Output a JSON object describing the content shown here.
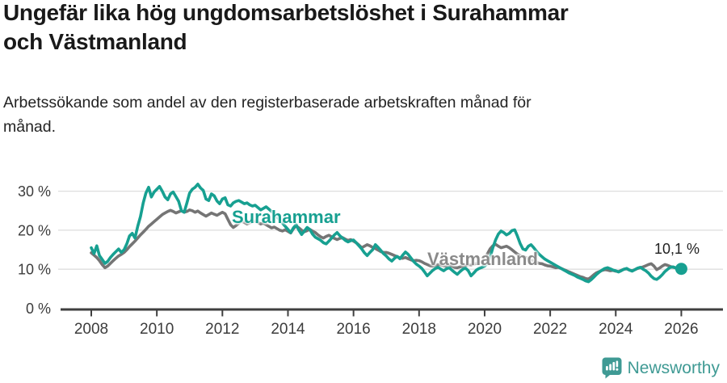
{
  "header": {
    "title": "Ungefär lika hög ungdomsarbetslöshet i Surahammar\noch Västmanland",
    "subtitle": "Arbetssökande som andel av den registerbaserade arbetskraften månad för\nmånad."
  },
  "footer": {
    "brand": "Newsworthy",
    "logo_icon": "speech-bubble-bar-chart-icon",
    "brand_color": "#3f9a94"
  },
  "chart_data": {
    "type": "line",
    "title": "Ungefär lika hög ungdomsarbetslöshet i Surahammar och Västmanland",
    "subtitle": "Arbetssökande som andel av den registerbaserade arbetskraften månad för månad.",
    "x_unit": "month",
    "x_start": "2008-01",
    "x_end": "2026-01",
    "x_tick_years": [
      2008,
      2010,
      2012,
      2014,
      2016,
      2018,
      2020,
      2022,
      2024,
      2026
    ],
    "y_ticks": [
      {
        "value": 0,
        "label": "0 %"
      },
      {
        "value": 10,
        "label": "10 %"
      },
      {
        "value": 20,
        "label": "20 %"
      },
      {
        "value": 30,
        "label": "30 %"
      }
    ],
    "ylim": [
      0,
      33.5
    ],
    "grid": "horizontal",
    "legend_position": "inline-labels",
    "colors": {
      "surahammar": "#17a091",
      "vastmanland": "#757575",
      "grid": "#dedede",
      "axis": "#3f3f3f"
    },
    "end_annotation": {
      "series": "Surahammar",
      "text": "10,1 %",
      "value": 10.1
    },
    "series": [
      {
        "name": "Surahammar",
        "label_text": "Surahammar",
        "color": "#17a091",
        "end_dot": true,
        "values": [
          15.5,
          14.0,
          16.0,
          13.5,
          12.5,
          11.5,
          12.0,
          13.0,
          13.8,
          14.5,
          15.2,
          14.3,
          15.0,
          16.5,
          18.5,
          19.2,
          18.0,
          21.0,
          23.5,
          27.0,
          29.5,
          31.0,
          28.5,
          29.8,
          30.5,
          31.2,
          30.0,
          28.5,
          27.8,
          29.3,
          29.8,
          28.6,
          27.4,
          25.0,
          24.6,
          27.0,
          29.5,
          30.5,
          31.0,
          31.8,
          30.8,
          30.2,
          28.0,
          27.6,
          29.3,
          28.8,
          27.5,
          26.8,
          28.0,
          28.3,
          26.5,
          26.2,
          27.0,
          27.4,
          27.6,
          27.2,
          26.8,
          27.0,
          26.5,
          26.2,
          26.4,
          25.8,
          25.2,
          25.6,
          26.0,
          25.4,
          24.8,
          24.2,
          23.4,
          22.6,
          21.8,
          21.0,
          20.2,
          19.4,
          20.6,
          21.4,
          20.0,
          18.9,
          19.8,
          20.7,
          20.2,
          19.0,
          18.2,
          17.8,
          17.4,
          16.8,
          16.5,
          17.2,
          18.0,
          18.8,
          19.4,
          18.6,
          18.0,
          17.4,
          17.0,
          17.3,
          17.5,
          16.8,
          16.0,
          15.2,
          14.2,
          13.5,
          14.3,
          15.0,
          16.3,
          15.6,
          14.8,
          14.0,
          13.4,
          12.6,
          12.1,
          12.8,
          13.3,
          12.7,
          13.6,
          14.4,
          13.8,
          12.9,
          12.0,
          11.3,
          10.8,
          10.2,
          9.3,
          8.3,
          9.0,
          9.7,
          10.2,
          10.5,
          10.0,
          9.6,
          10.1,
          10.4,
          9.8,
          9.2,
          8.7,
          9.4,
          10.0,
          10.3,
          9.6,
          8.3,
          9.0,
          9.8,
          10.2,
          10.5,
          10.8,
          11.5,
          13.0,
          15.5,
          17.5,
          19.0,
          19.8,
          19.4,
          18.8,
          19.2,
          19.9,
          20.1,
          18.5,
          16.6,
          15.2,
          14.9,
          15.9,
          16.3,
          15.5,
          14.6,
          13.8,
          13.2,
          12.6,
          12.2,
          11.8,
          11.4,
          11.0,
          10.6,
          10.2,
          9.8,
          9.4,
          9.0,
          8.7,
          8.4,
          8.0,
          7.7,
          7.4,
          7.0,
          6.8,
          7.3,
          8.0,
          8.7,
          9.3,
          9.8,
          10.2,
          10.4,
          10.1,
          9.8,
          9.6,
          9.3,
          9.6,
          10.0,
          10.2,
          9.8,
          9.5,
          9.9,
          10.3,
          10.5,
          10.0,
          9.6,
          9.0,
          8.2,
          7.6,
          7.4,
          7.9,
          8.6,
          9.4,
          10.0,
          10.5,
          10.6,
          10.3,
          10.2,
          10.1
        ]
      },
      {
        "name": "Västmanland",
        "label_text": "Västmanland",
        "color": "#757575",
        "end_dot": false,
        "values": [
          14.2,
          13.6,
          13.0,
          12.2,
          11.2,
          10.4,
          10.8,
          11.5,
          12.2,
          12.8,
          13.4,
          13.8,
          14.3,
          15.0,
          15.8,
          16.5,
          17.2,
          18.0,
          18.8,
          19.5,
          20.2,
          21.0,
          21.6,
          22.2,
          22.8,
          23.4,
          24.0,
          24.4,
          24.8,
          25.1,
          24.8,
          24.4,
          24.7,
          25.0,
          24.6,
          24.8,
          25.2,
          25.0,
          24.6,
          24.9,
          24.4,
          24.0,
          23.6,
          24.0,
          24.4,
          24.1,
          23.8,
          24.2,
          24.6,
          24.2,
          22.8,
          21.4,
          20.7,
          21.2,
          21.8,
          22.3,
          22.0,
          21.6,
          21.9,
          22.2,
          22.4,
          22.0,
          21.6,
          21.8,
          21.4,
          21.0,
          20.6,
          20.8,
          20.4,
          20.0,
          19.8,
          20.1,
          19.7,
          19.3,
          20.4,
          21.1,
          20.6,
          20.0,
          19.6,
          19.9,
          20.2,
          19.8,
          19.4,
          18.8,
          18.3,
          18.0,
          18.4,
          18.7,
          18.3,
          17.9,
          17.6,
          17.9,
          18.1,
          17.7,
          17.4,
          17.6,
          17.2,
          16.8,
          16.2,
          15.5,
          15.9,
          16.3,
          16.0,
          15.6,
          15.3,
          14.9,
          14.5,
          14.3,
          14.3,
          14.1,
          13.8,
          13.5,
          13.2,
          12.9,
          12.8,
          13.0,
          12.7,
          12.4,
          12.2,
          12.3,
          12.2,
          11.9,
          11.5,
          11.2,
          10.9,
          10.8,
          11.0,
          11.2,
          11.1,
          10.9,
          10.8,
          11.0,
          10.8,
          10.5,
          10.4,
          10.6,
          10.8,
          11.0,
          11.2,
          11.1,
          11.3,
          11.5,
          11.6,
          12.0,
          12.6,
          13.9,
          15.2,
          16.0,
          16.4,
          15.9,
          15.5,
          15.7,
          15.9,
          15.5,
          15.0,
          14.4,
          13.9,
          13.5,
          13.3,
          13.0,
          12.8,
          12.4,
          12.1,
          11.8,
          11.5,
          11.4,
          11.1,
          10.9,
          10.8,
          10.6,
          10.4,
          10.5,
          10.2,
          9.9,
          9.6,
          9.3,
          9.0,
          8.7,
          8.4,
          8.1,
          7.9,
          7.6,
          7.5,
          8.0,
          8.6,
          9.1,
          9.4,
          9.7,
          9.9,
          9.8,
          9.6,
          9.7,
          9.5,
          9.4,
          9.7,
          10.0,
          10.1,
          9.8,
          9.6,
          9.9,
          10.2,
          10.4,
          10.6,
          10.9,
          11.2,
          11.4,
          10.8,
          9.9,
          10.3,
          10.8,
          11.2,
          11.0,
          10.7,
          10.5,
          10.4,
          10.5,
          10.4
        ]
      }
    ]
  }
}
